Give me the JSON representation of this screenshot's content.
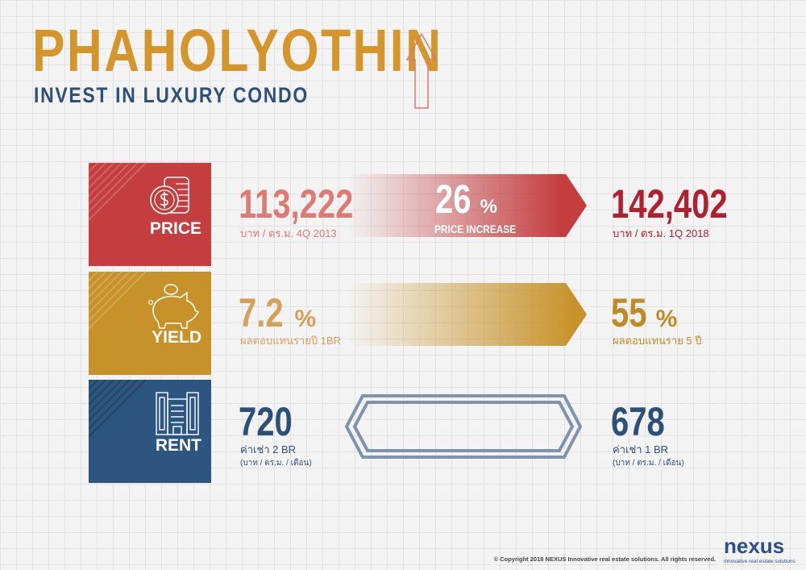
{
  "header": {
    "title": "PHAHOLYOTHIN",
    "subtitle": "INVEST IN LUXURY CONDO",
    "icon": "arrow-up-icon"
  },
  "colors": {
    "gold": "#d4962a",
    "red": "#c43d3f",
    "navy": "#2c5079"
  },
  "rows": [
    {
      "label": "PRICE",
      "icon": "coins-dollar-icon",
      "left_value": "113,222",
      "left_caption": "บาท / ตร.ม.  4Q 2013",
      "center_value": "26",
      "center_unit": "%",
      "center_caption": "PRICE INCREASE",
      "right_value": "142,402",
      "right_caption": "บาท / ตร.ม.  1Q 2018"
    },
    {
      "label": "YIELD",
      "icon": "piggy-bank-icon",
      "left_value": "7.2",
      "left_unit": "%",
      "left_caption": "ผลตอบแทนรายปี  1BR",
      "right_value": "55",
      "right_unit": "%",
      "right_caption": "ผลตอบแทนราย 5 ปี"
    },
    {
      "label": "RENT",
      "icon": "building-icon",
      "left_value": "720",
      "left_caption": "ค่าเช่า  2 BR",
      "left_caption2": "(บาท / ตร.ม. / เดือน)",
      "right_value": "678",
      "right_caption": "ค่าเช่า  1 BR",
      "right_caption2": "(บาท / ตร.ม. / เดือน)"
    }
  ],
  "footer": {
    "copyright": "© Copyright 2018 NEXUS Innovative real estate solutions. All rights reserved.",
    "logo": "nexus",
    "logo_tagline": "innovative real estate solutions"
  }
}
